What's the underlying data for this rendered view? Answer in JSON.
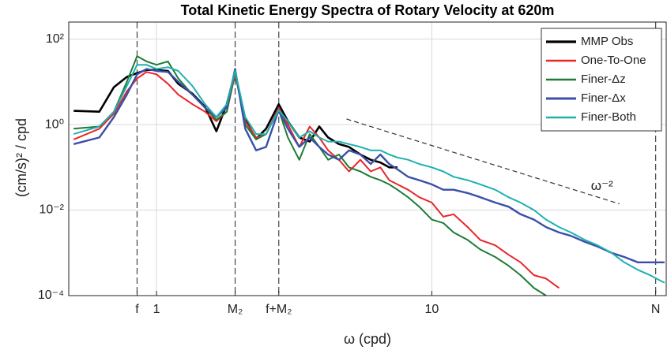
{
  "chart_data": {
    "type": "line",
    "title": "Total Kinetic Energy Spectra of Rotary Velocity at 620m",
    "x_label": "ω (cpd)",
    "y_label": "(cm/s)² / cpd",
    "log_x": true,
    "log_y": true,
    "grid": true,
    "legend": "upper right",
    "xlim": [
      0.48,
      71
    ],
    "ylim": [
      0.0001,
      250
    ],
    "xticks": [
      {
        "value": 0.85,
        "label": "f"
      },
      1,
      {
        "value": 1.93,
        "label": "M₂"
      },
      {
        "value": 2.78,
        "label": "f+M₂"
      },
      10,
      {
        "value": 65,
        "label": "N"
      }
    ],
    "yticks": [
      {
        "value": 0.0001,
        "label": "10⁻⁴"
      },
      {
        "value": 0.01,
        "label": "10⁻²"
      },
      {
        "value": 1,
        "label": "10⁰"
      },
      {
        "value": 100,
        "label": "10²"
      }
    ],
    "x": [
      0.5,
      0.62,
      0.7,
      0.78,
      0.85,
      0.92,
      1.0,
      1.1,
      1.2,
      1.35,
      1.5,
      1.65,
      1.8,
      1.93,
      2.1,
      2.3,
      2.5,
      2.78,
      3.0,
      3.3,
      3.6,
      3.9,
      4.2,
      4.6,
      5.0,
      5.5,
      6.0,
      6.5,
      7.0,
      7.5,
      8.2,
      9,
      10,
      11,
      12,
      13.5,
      15,
      17,
      19,
      21,
      23.5,
      26,
      29,
      32,
      36,
      40,
      45,
      50,
      56,
      62,
      70
    ],
    "series": [
      {
        "name": "MMP Obs",
        "color": "#000000",
        "width": 2.6,
        "values": [
          2.1,
          2,
          7.5,
          13,
          16,
          19,
          19,
          18,
          9,
          5.3,
          2.6,
          0.7,
          3,
          17,
          1.3,
          0.46,
          0.8,
          3,
          1.2,
          0.5,
          0.4,
          0.9,
          0.5,
          0.35,
          0.3,
          0.2,
          0.15,
          0.13,
          0.1,
          0.1,
          null,
          null,
          null,
          null,
          null,
          null,
          null,
          null,
          null,
          null,
          null,
          null,
          null,
          null,
          null,
          null,
          null,
          null,
          null,
          null,
          null
        ]
      },
      {
        "name": "One-To-One",
        "color": "#e8262a",
        "width": 2,
        "values": [
          0.45,
          0.8,
          1.8,
          6,
          12,
          17,
          15,
          9,
          5,
          3,
          2,
          1.2,
          2,
          15,
          1.2,
          0.5,
          0.6,
          2.5,
          1,
          0.3,
          0.9,
          0.5,
          0.25,
          0.15,
          0.08,
          0.15,
          0.08,
          0.1,
          0.05,
          0.04,
          0.03,
          0.02,
          0.015,
          0.007,
          0.008,
          0.004,
          0.002,
          0.0015,
          0.0009,
          0.0006,
          0.0003,
          0.00025,
          0.00015,
          null,
          null,
          null,
          null,
          null,
          null,
          null,
          null
        ]
      },
      {
        "name": "Finer-Δz",
        "color": "#1e7b35",
        "width": 2,
        "values": [
          0.8,
          0.9,
          2,
          10,
          40,
          30,
          25,
          30,
          12,
          5,
          2.5,
          1.3,
          2,
          17,
          1.0,
          0.45,
          0.6,
          2.2,
          0.5,
          0.15,
          0.6,
          0.3,
          0.15,
          0.2,
          0.1,
          0.08,
          0.06,
          0.05,
          0.04,
          0.03,
          0.02,
          0.012,
          0.006,
          0.005,
          0.003,
          0.002,
          0.0012,
          0.0008,
          0.0005,
          0.0003,
          0.00015,
          0.0001,
          null,
          null,
          null,
          null,
          null,
          null,
          null,
          null,
          null
        ]
      },
      {
        "name": "Finer-Δx",
        "color": "#3a4fa8",
        "width": 2.4,
        "values": [
          0.35,
          0.5,
          1.5,
          5,
          15,
          20,
          18,
          17,
          10,
          5,
          2.5,
          1.5,
          2.5,
          20,
          0.8,
          0.25,
          0.3,
          2.2,
          0.8,
          0.3,
          0.5,
          0.3,
          0.2,
          0.15,
          0.25,
          0.2,
          0.12,
          0.2,
          0.12,
          0.09,
          0.06,
          0.05,
          0.04,
          0.03,
          0.03,
          0.025,
          0.02,
          0.015,
          0.012,
          0.008,
          0.006,
          0.004,
          0.003,
          0.0025,
          0.0018,
          0.0014,
          0.001,
          0.0008,
          0.0006,
          0.0006,
          0.0006
        ]
      },
      {
        "name": "Finer-Both",
        "color": "#1fb0b0",
        "width": 2,
        "values": [
          0.6,
          0.9,
          2,
          8,
          25,
          25,
          20,
          22,
          18,
          8,
          3,
          1.5,
          3,
          18,
          1.5,
          0.6,
          0.6,
          2.2,
          1.2,
          0.5,
          0.7,
          0.5,
          0.4,
          0.4,
          0.35,
          0.3,
          0.25,
          0.25,
          0.2,
          0.17,
          0.15,
          0.12,
          0.1,
          0.08,
          0.06,
          0.05,
          0.04,
          0.03,
          0.02,
          0.015,
          0.01,
          0.006,
          0.004,
          0.003,
          0.002,
          0.0015,
          0.001,
          0.0006,
          0.0004,
          0.0003,
          0.0002
        ]
      }
    ],
    "reference_line": {
      "label": "ω⁻²",
      "x": [
        4.9,
        48
      ],
      "values": [
        1.35,
        0.014
      ]
    }
  }
}
